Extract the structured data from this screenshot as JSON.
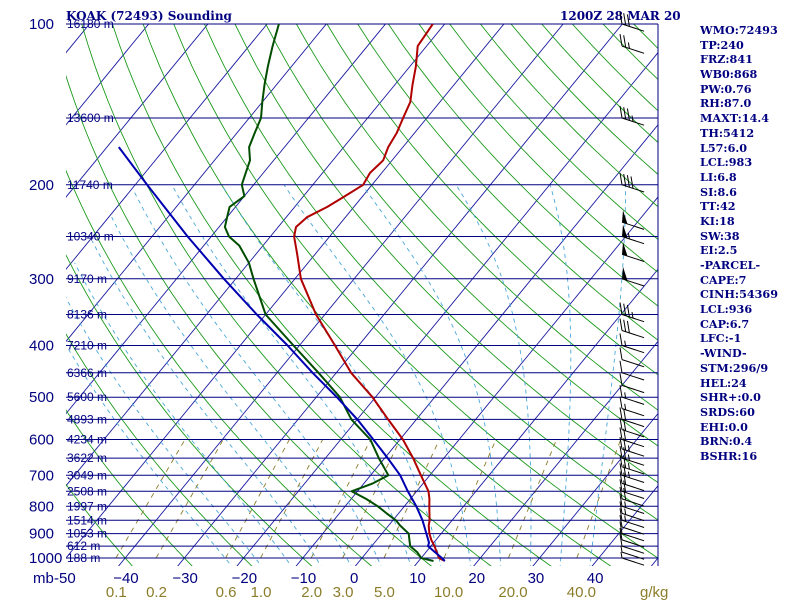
{
  "header": {
    "station": "KOAK (72493) Sounding",
    "time": "1200Z 28 MAR 20"
  },
  "colors": {
    "axis": "#000080",
    "isobar": "#000080",
    "isotherm": "#1a1aa0",
    "dry_adiabat": "#1d9a1d",
    "moist_adiabat": "#4aa8d8",
    "mixing_ratio": "#8B7D2A",
    "temperature": "#b00000",
    "dewpoint": "#004d00",
    "parcel": "#0000b0",
    "barbs": "#000000"
  },
  "indices": [
    "WMO:72493",
    "TP:240",
    "FRZ:841",
    "WB0:868",
    "PW:0.76",
    "RH:87.0",
    "MAXT:14.4",
    "TH:5412",
    "L57:6.0",
    "LCL:983",
    "LI:6.8",
    "SI:8.6",
    "TT:42",
    "KI:18",
    "SW:38",
    "EI:2.5",
    "-PARCEL-",
    "CAPE:7",
    "CINH:54369",
    "LCL:936",
    "CAP:6.7",
    "LFC:-1",
    "-WIND-",
    "STM:296/9",
    "HEL:24",
    "SHR+:0.0",
    "SRDS:60",
    "EHI:0.0",
    "BRN:0.4",
    "BSHR:16"
  ],
  "chart_data": {
    "type": "line",
    "title": "KOAK (72493) Sounding",
    "xlabel": "",
    "ylabel": "mb",
    "pressure_axis_label": "mb",
    "mixing_ratio_unit": "g/kg",
    "pressure_range_mb": [
      1000,
      100
    ],
    "temperature_range_c": [
      -50,
      50
    ],
    "pressure_levels": [
      100,
      200,
      300,
      400,
      500,
      600,
      700,
      800,
      900,
      1000
    ],
    "pressure_tick_labels": [
      "100",
      "200",
      "300",
      "400",
      "500",
      "600",
      "700",
      "800",
      "900",
      "1000"
    ],
    "temperature_ticks": [
      -50,
      -40,
      -30,
      -20,
      -10,
      0,
      10,
      20,
      30,
      40
    ],
    "temperature_tick_labels": [
      "-50",
      "−40",
      "−30",
      "−20",
      "−10",
      "0",
      "10",
      "20",
      "30",
      "40"
    ],
    "mixing_ratio_ticks": [
      0.1,
      0.2,
      0.6,
      1.0,
      2.0,
      3.0,
      5.0,
      10.0,
      20.0,
      40.0
    ],
    "mixing_ratio_tick_labels": [
      "0.1",
      "0.2",
      "0.6",
      "1.0",
      "2.0",
      "3.0",
      "5.0",
      "10.0",
      "20.0",
      "40.0"
    ],
    "height_levels": [
      {
        "p": 100,
        "label": "16180 m"
      },
      {
        "p": 150,
        "label": "13600 m"
      },
      {
        "p": 200,
        "label": "11740 m"
      },
      {
        "p": 250,
        "label": "10340 m"
      },
      {
        "p": 300,
        "label": "9170 m"
      },
      {
        "p": 350,
        "label": "8136 m"
      },
      {
        "p": 400,
        "label": "7210 m"
      },
      {
        "p": 450,
        "label": "6366 m"
      },
      {
        "p": 500,
        "label": "5600 m"
      },
      {
        "p": 550,
        "label": "4893 m"
      },
      {
        "p": 600,
        "label": "4234 m"
      },
      {
        "p": 650,
        "label": "3622 m"
      },
      {
        "p": 700,
        "label": "3049 m"
      },
      {
        "p": 750,
        "label": "2508 m"
      },
      {
        "p": 800,
        "label": "1997 m"
      },
      {
        "p": 850,
        "label": "1514 m"
      },
      {
        "p": 900,
        "label": "1053 m"
      },
      {
        "p": 950,
        "label": "612 m"
      },
      {
        "p": 1000,
        "label": "188 m"
      }
    ],
    "series": [
      {
        "key": "temperature",
        "p": [
          1013,
          1000,
          975,
          950,
          925,
          900,
          870,
          850,
          800,
          775,
          750,
          700,
          650,
          600,
          550,
          500,
          450,
          400,
          350,
          300,
          270,
          250,
          240,
          230,
          220,
          210,
          200,
          190,
          180,
          170,
          160,
          150,
          140,
          130,
          120,
          110,
          100
        ],
        "t": [
          14.4,
          13.0,
          11.8,
          10.6,
          9.2,
          8.0,
          6.8,
          6.2,
          4.2,
          3.2,
          2.0,
          -1.5,
          -5.2,
          -9.5,
          -14.8,
          -20.5,
          -27.5,
          -34.0,
          -41.5,
          -49.0,
          -53.0,
          -56.0,
          -57.0,
          -56.5,
          -54.5,
          -53.0,
          -51.5,
          -52.0,
          -51.5,
          -52.5,
          -53.0,
          -54.0,
          -55.0,
          -57.0,
          -59.0,
          -61.5,
          -62.0
        ]
      },
      {
        "key": "dewpoint",
        "p": [
          1013,
          1000,
          975,
          950,
          925,
          900,
          870,
          850,
          825,
          800,
          775,
          750,
          725,
          700,
          650,
          600,
          550,
          500,
          450,
          400,
          350,
          300,
          280,
          260,
          250,
          240,
          230,
          220,
          210,
          200,
          190,
          180,
          170,
          160,
          150,
          140,
          130,
          120,
          110,
          100
        ],
        "t": [
          12.5,
          10.0,
          8.5,
          6.5,
          5.5,
          4.5,
          2.0,
          0.5,
          -2.0,
          -4.5,
          -7.5,
          -11.0,
          -8.5,
          -7.0,
          -11.0,
          -15.0,
          -21.0,
          -26.0,
          -33.0,
          -41.0,
          -50.0,
          -57.0,
          -60.0,
          -64.0,
          -67.0,
          -69.0,
          -70.0,
          -71.0,
          -70.0,
          -72.0,
          -73.0,
          -74.0,
          -76.0,
          -77.0,
          -78.0,
          -80.0,
          -82.0,
          -84.0,
          -86.0,
          -88.0
        ]
      },
      {
        "key": "parcel",
        "p": [
          1013,
          1000,
          975,
          950,
          936,
          900,
          850,
          800,
          750,
          700,
          650,
          600,
          550,
          500,
          450,
          400,
          350,
          300,
          250,
          200,
          170
        ],
        "t": [
          14.4,
          13.5,
          11.5,
          9.5,
          9.2,
          7.5,
          5.0,
          2.0,
          -1.5,
          -5.0,
          -9.5,
          -14.5,
          -20.0,
          -26.5,
          -34.0,
          -42.0,
          -51.5,
          -62.0,
          -74.0,
          -88.0,
          -98.0
        ]
      }
    ],
    "wind_barbs": [
      {
        "p": 1000,
        "spd": 5
      },
      {
        "p": 975,
        "spd": 5
      },
      {
        "p": 950,
        "spd": 10
      },
      {
        "p": 925,
        "spd": 10
      },
      {
        "p": 900,
        "spd": 10
      },
      {
        "p": 875,
        "spd": 10
      },
      {
        "p": 850,
        "spd": 15
      },
      {
        "p": 825,
        "spd": 15
      },
      {
        "p": 800,
        "spd": 15
      },
      {
        "p": 775,
        "spd": 20
      },
      {
        "p": 750,
        "spd": 20
      },
      {
        "p": 725,
        "spd": 20
      },
      {
        "p": 700,
        "spd": 25
      },
      {
        "p": 675,
        "spd": 25
      },
      {
        "p": 650,
        "spd": 25
      },
      {
        "p": 625,
        "spd": 25
      },
      {
        "p": 600,
        "spd": 20
      },
      {
        "p": 575,
        "spd": 20
      },
      {
        "p": 550,
        "spd": 20
      },
      {
        "p": 525,
        "spd": 15
      },
      {
        "p": 500,
        "spd": 15
      },
      {
        "p": 475,
        "spd": 10
      },
      {
        "p": 450,
        "spd": 10
      },
      {
        "p": 425,
        "spd": 10
      },
      {
        "p": 400,
        "spd": 15
      },
      {
        "p": 375,
        "spd": 30
      },
      {
        "p": 350,
        "spd": 35
      },
      {
        "p": 300,
        "spd": 50
      },
      {
        "p": 270,
        "spd": 50
      },
      {
        "p": 250,
        "spd": 55
      },
      {
        "p": 235,
        "spd": 50
      },
      {
        "p": 200,
        "spd": 40
      },
      {
        "p": 150,
        "spd": 35
      },
      {
        "p": 110,
        "spd": 25
      },
      {
        "p": 100,
        "spd": 30
      }
    ]
  }
}
